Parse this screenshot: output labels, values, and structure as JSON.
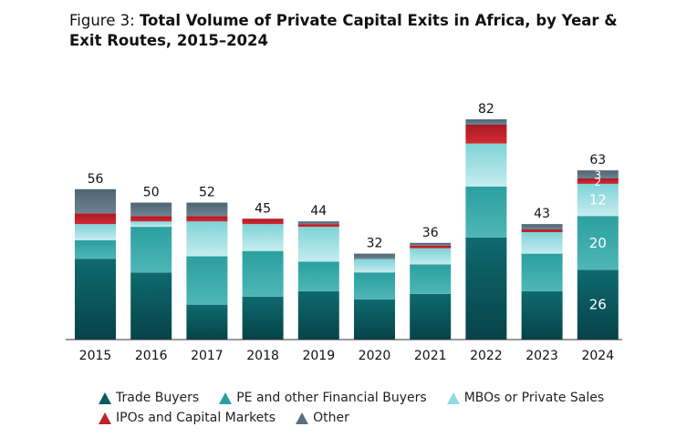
{
  "title": {
    "prefix": "Figure 3: ",
    "main": "Total Volume of Private Capital Exits in Africa, by Year & Exit Routes, 2015–2024"
  },
  "colors": {
    "Trade Buyers": "#0b5b60",
    "PE and other Financial Buyers": "#2a9d9f",
    "MBOs or Private Sales": "#8fdbe0",
    "IPOs and Capital Markets": "#c0212b",
    "Other": "#5a7080"
  },
  "chart_data": {
    "type": "bar",
    "stacked": true,
    "title": "Total Volume of Private Capital Exits in Africa, by Year & Exit Routes, 2015–2024",
    "categories": [
      "2015",
      "2016",
      "2017",
      "2018",
      "2019",
      "2020",
      "2021",
      "2022",
      "2023",
      "2024"
    ],
    "totals": [
      56,
      50,
      52,
      45,
      44,
      32,
      36,
      82,
      43,
      63
    ],
    "series": [
      {
        "name": "Trade Buyers",
        "values": [
          30,
          25,
          13,
          16,
          18,
          15,
          17,
          38,
          18,
          26
        ]
      },
      {
        "name": "PE and other Financial Buyers",
        "values": [
          7,
          17,
          18,
          17,
          11,
          10,
          11,
          19,
          14,
          20
        ]
      },
      {
        "name": "MBOs or Private Sales",
        "values": [
          6,
          2,
          13,
          10,
          13,
          5,
          6,
          16,
          8,
          12
        ]
      },
      {
        "name": "IPOs and Capital Markets",
        "values": [
          4,
          2,
          2,
          2,
          1,
          0,
          1,
          7,
          1,
          2
        ]
      },
      {
        "name": "Other",
        "values": [
          9,
          5,
          5,
          0,
          1,
          2,
          1,
          2,
          2,
          3
        ]
      }
    ],
    "segment_labels": {
      "2024": [
        "26",
        "20",
        "12",
        "2",
        "3"
      ]
    },
    "xlabel": "",
    "ylabel": "",
    "legend_position": "bottom",
    "grid": false
  },
  "legend": [
    {
      "label": "Trade Buyers",
      "color": "#0b5b60"
    },
    {
      "label": "PE and other Financial Buyers",
      "color": "#2a9d9f"
    },
    {
      "label": "MBOs or Private Sales",
      "color": "#8fdbe0"
    },
    {
      "label": "IPOs and Capital Markets",
      "color": "#c0212b"
    },
    {
      "label": "Other",
      "color": "#5a7080"
    }
  ]
}
